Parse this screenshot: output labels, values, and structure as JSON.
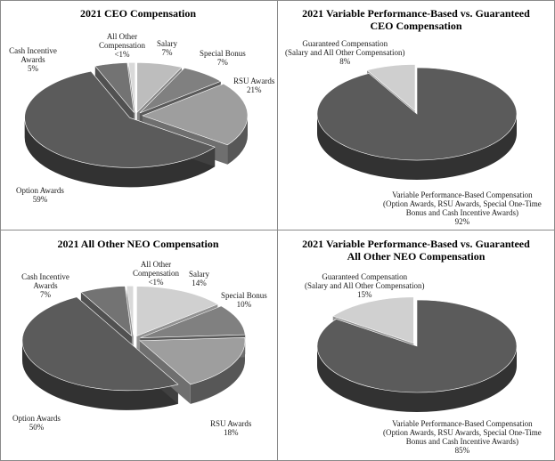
{
  "chart_data": [
    {
      "type": "pie",
      "title": "2021 CEO Compensation",
      "slices": [
        {
          "name": "Salary",
          "value": 7,
          "label": "7%",
          "color": "#bdbdbd",
          "explode": 1
        },
        {
          "name": "Special Bonus",
          "value": 7,
          "label": "7%",
          "color": "#808080",
          "explode": 1
        },
        {
          "name": "RSU Awards",
          "value": 21,
          "label": "21%",
          "color": "#9e9e9e",
          "explode": 1
        },
        {
          "name": "Option Awards",
          "value": 59,
          "label": "59%",
          "color": "#5b5b5b",
          "explode": 1
        },
        {
          "name": "Cash Incentive Awards",
          "value": 5,
          "label": "5%",
          "color": "#737373",
          "explode": 1
        },
        {
          "name": "All Other Compensation",
          "value": 1,
          "label": "<1%",
          "color": "#d9d9d9",
          "explode": 1
        }
      ]
    },
    {
      "type": "pie",
      "title": "2021 Variable Performance-Based vs. Guaranteed\nCEO Compensation",
      "slices": [
        {
          "name": "Variable Performance-Based Compensation\n(Option Awards, RSU Awards, Special One-Time\nBonus and Cash Incentive Awards)",
          "value": 92,
          "label": "92%",
          "color": "#5b5b5b",
          "explode": 0
        },
        {
          "name": "Guaranteed Compensation\n(Salary and All Other Compensation)",
          "value": 8,
          "label": "8%",
          "color": "#cfcfcf",
          "explode": 1
        }
      ]
    },
    {
      "type": "pie",
      "title": "2021 All Other NEO Compensation",
      "slices": [
        {
          "name": "Salary",
          "value": 14,
          "label": "14%",
          "color": "#d0d0d0",
          "explode": 1
        },
        {
          "name": "Special Bonus",
          "value": 10,
          "label": "10%",
          "color": "#808080",
          "explode": 1
        },
        {
          "name": "RSU Awards",
          "value": 18,
          "label": "18%",
          "color": "#9e9e9e",
          "explode": 1
        },
        {
          "name": "Option Awards",
          "value": 50,
          "label": "50%",
          "color": "#5b5b5b",
          "explode": 1
        },
        {
          "name": "Cash Incentive Awards",
          "value": 7,
          "label": "7%",
          "color": "#737373",
          "explode": 1
        },
        {
          "name": "All Other Compensation",
          "value": 1,
          "label": "<1%",
          "color": "#d9d9d9",
          "explode": 1
        }
      ]
    },
    {
      "type": "pie",
      "title": "2021 Variable Performance-Based vs. Guaranteed\nAll Other NEO Compensation",
      "slices": [
        {
          "name": "Variable Performance-Based Compensation\n(Option Awards, RSU Awards, Special One-Time\nBonus and Cash Incentive Awards)",
          "value": 85,
          "label": "85%",
          "color": "#5b5b5b",
          "explode": 0
        },
        {
          "name": "Guaranteed Compensation\n(Salary and All Other Compensation)",
          "value": 15,
          "label": "15%",
          "color": "#d0d0d0",
          "explode": 1
        }
      ]
    }
  ]
}
